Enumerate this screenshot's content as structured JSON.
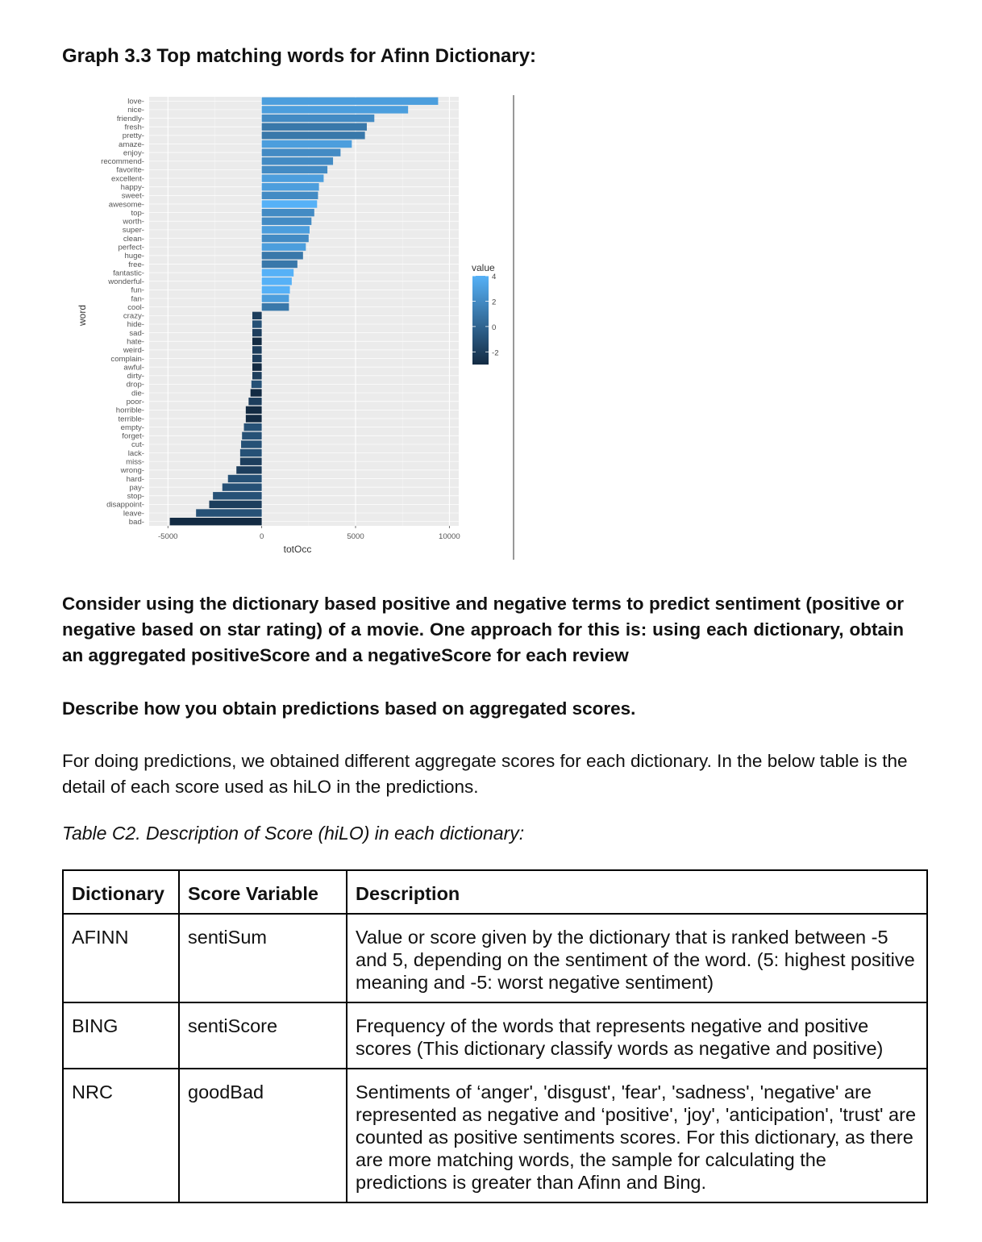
{
  "graph_title": "Graph 3.3 Top matching words for Afinn Dictionary:",
  "chart_data": {
    "type": "bar",
    "orientation": "horizontal",
    "ylabel": "word",
    "xlabel": "totOcc",
    "xlim": [
      -6000,
      10500
    ],
    "xticks": [
      -5000,
      0,
      5000,
      10000
    ],
    "grid": true,
    "legend": {
      "title": "value",
      "ticks": [
        4,
        2,
        0,
        -2
      ],
      "placement": "right"
    },
    "colors": {
      "low": "#132b43",
      "high": "#56b1f7"
    },
    "categories": [
      "love",
      "nice",
      "friendly",
      "fresh",
      "pretty",
      "amaze",
      "enjoy",
      "recommend",
      "favorite",
      "excellent",
      "happy",
      "sweet",
      "awesome",
      "top",
      "worth",
      "super",
      "clean",
      "perfect",
      "huge",
      "free",
      "fantastic",
      "wonderful",
      "fun",
      "fan",
      "cool",
      "crazy",
      "hide",
      "sad",
      "hate",
      "weird",
      "complain",
      "awful",
      "dirty",
      "drop",
      "die",
      "poor",
      "horrible",
      "terrible",
      "empty",
      "forget",
      "cut",
      "lack",
      "miss",
      "wrong",
      "hard",
      "pay",
      "stop",
      "disappoint",
      "leave",
      "bad"
    ],
    "values": [
      9400,
      7800,
      6000,
      5600,
      5500,
      4800,
      4200,
      3800,
      3500,
      3300,
      3050,
      3000,
      2950,
      2800,
      2650,
      2550,
      2500,
      2350,
      2200,
      1900,
      1700,
      1600,
      1500,
      1450,
      1450,
      -500,
      -500,
      -500,
      -500,
      -500,
      -500,
      -500,
      -500,
      -550,
      -600,
      -700,
      -850,
      -850,
      -950,
      -1050,
      -1100,
      -1150,
      -1150,
      -1350,
      -1800,
      -2100,
      -2600,
      -2800,
      -3500,
      -4900
    ],
    "word_values": [
      3,
      3,
      2,
      1,
      1,
      3,
      2,
      2,
      2,
      3,
      3,
      2,
      4,
      2,
      2,
      3,
      2,
      3,
      1,
      1,
      4,
      4,
      4,
      3,
      1,
      -2,
      -1,
      -2,
      -3,
      -2,
      -2,
      -3,
      -2,
      -1,
      -3,
      -2,
      -3,
      -3,
      -1,
      -1,
      -1,
      -1,
      -2,
      -2,
      -1,
      -1,
      -1,
      -2,
      -1,
      -3
    ]
  },
  "para1": "Consider using the dictionary based positive and negative terms to predict sentiment (positive or negative based on star rating) of a movie. One approach for this is: using each dictionary, obtain an aggregated positiveScore and a negativeScore for each review",
  "para2": "Describe how you obtain predictions based on aggregated scores.",
  "para3": "For doing predictions, we obtained different aggregate scores for each dictionary. In the below table is the detail of each score used as hiLO in the predictions.",
  "table_caption": "Table C2. Description of Score (hiLO) in each dictionary:",
  "table": {
    "headers": [
      "Dictionary",
      "Score Variable",
      "Description"
    ],
    "rows": [
      {
        "dictionary": "AFINN",
        "variable": "sentiSum",
        "description": "Value or score given by the dictionary that is ranked between -5 and 5, depending on the sentiment of the word. (5: highest positive meaning and -5: worst negative sentiment)"
      },
      {
        "dictionary": "BING",
        "variable": "sentiScore",
        "description": "Frequency of the words that represents negative and positive scores (This dictionary classify words as negative and positive)"
      },
      {
        "dictionary": "NRC",
        "variable": "goodBad",
        "description": "Sentiments of ‘anger', 'disgust', 'fear', 'sadness', 'negative' are represented as negative and ‘positive', 'joy', 'anticipation', 'trust' are counted as positive sentiments scores. For this dictionary, as there are more matching words, the sample for calculating the predictions is greater than Afinn and Bing."
      }
    ]
  }
}
